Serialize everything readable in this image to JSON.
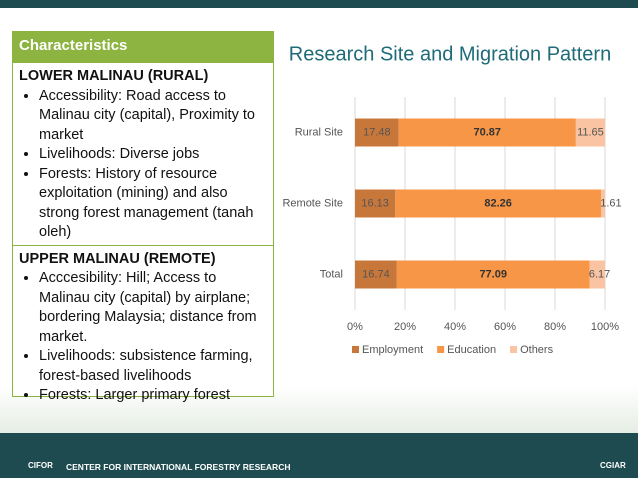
{
  "panel": {
    "header": "Characteristics",
    "sections": [
      {
        "title": "LOWER MALINAU (RURAL)",
        "items": [
          "Accessibility: Road access to Malinau city (capital), Proximity to market",
          "Livelihoods: Diverse jobs",
          "Forests: History of resource exploitation (mining) and also strong forest management (tanah oleh)"
        ]
      },
      {
        "title": "UPPER MALINAU (REMOTE)",
        "items": [
          "Acccesibility: Hill; Access to Malinau city (capital) by airplane; bordering Malaysia; distance from market.",
          "Livelihoods: subsistence farming, forest-based livelihoods",
          "Forests: Larger primary forest"
        ]
      }
    ]
  },
  "chart_data": {
    "type": "bar",
    "orientation": "horizontal",
    "stacked": true,
    "title": "Research Site and Migration Pattern",
    "categories": [
      "Rural Site",
      "Remote Site",
      "Total"
    ],
    "series": [
      {
        "name": "Employment",
        "color": "#c8773b",
        "values": [
          17.48,
          16.13,
          16.74
        ]
      },
      {
        "name": "Education",
        "color": "#f79646",
        "values": [
          70.87,
          82.26,
          77.09
        ]
      },
      {
        "name": "Others",
        "color": "#fac4a2",
        "values": [
          11.65,
          1.61,
          6.17
        ]
      }
    ],
    "xlim": [
      0,
      100
    ],
    "xticks": [
      {
        "value": 0,
        "label": "0%"
      },
      {
        "value": 20,
        "label": "20%"
      },
      {
        "value": 40,
        "label": "40%"
      },
      {
        "value": 60,
        "label": "60%"
      },
      {
        "value": 80,
        "label": "80%"
      },
      {
        "value": 100,
        "label": "100%"
      }
    ],
    "grid": true,
    "legend": "bottom"
  },
  "footer": {
    "logo_left": "CIFOR",
    "org": "CENTER FOR INTERNATIONAL FORESTRY RESEARCH",
    "logo_right": "CGIAR"
  }
}
